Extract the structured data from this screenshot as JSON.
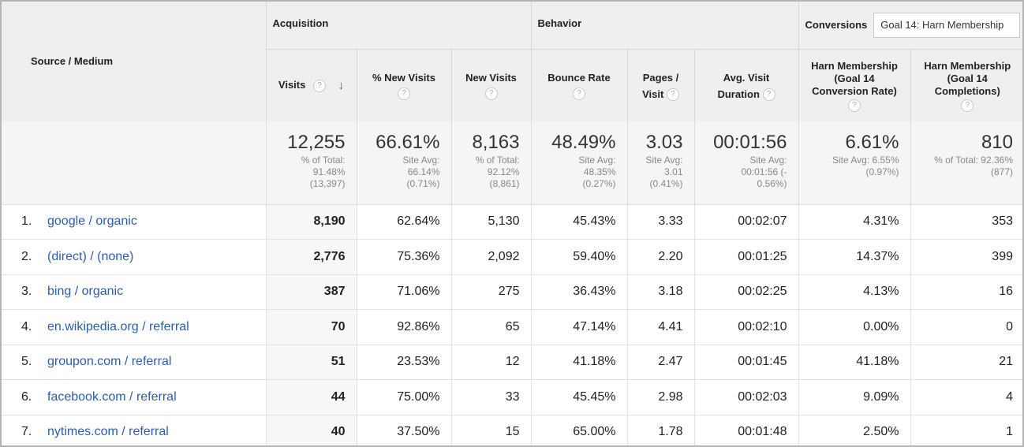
{
  "header": {
    "source_medium": "Source / Medium",
    "groups": {
      "acquisition": "Acquisition",
      "behavior": "Behavior",
      "conversions": "Conversions"
    },
    "goal_select": "Goal 14: Harn Membership",
    "columns": {
      "visits": "Visits",
      "pct_new_visits": "% New Visits",
      "new_visits": "New Visits",
      "bounce_rate": "Bounce Rate",
      "pages_visit_1": "Pages /",
      "pages_visit_2": "Visit",
      "avg_duration_1": "Avg. Visit",
      "avg_duration_2": "Duration",
      "conv_rate_1": "Harn Membership",
      "conv_rate_2": "(Goal 14",
      "conv_rate_3": "Conversion Rate)",
      "completions_1": "Harn Membership",
      "completions_2": "(Goal 14",
      "completions_3": "Completions)"
    },
    "help_glyph": "?",
    "sort_glyph": "↓"
  },
  "totals": {
    "visits": {
      "value": "12,255",
      "sub1": "% of Total:",
      "sub2": "91.48%",
      "sub3": "(13,397)"
    },
    "pct_new_visits": {
      "value": "66.61%",
      "sub1": "Site Avg:",
      "sub2": "66.14%",
      "sub3": "(0.71%)"
    },
    "new_visits": {
      "value": "8,163",
      "sub1": "% of Total:",
      "sub2": "92.12%",
      "sub3": "(8,861)"
    },
    "bounce_rate": {
      "value": "48.49%",
      "sub1": "Site Avg:",
      "sub2": "48.35%",
      "sub3": "(0.27%)"
    },
    "pages_visit": {
      "value": "3.03",
      "sub1": "Site Avg:",
      "sub2": "3.01",
      "sub3": "(0.41%)"
    },
    "avg_duration": {
      "value": "00:01:56",
      "sub1": "Site Avg:",
      "sub2": "00:01:56 (-",
      "sub3": "0.56%)"
    },
    "conv_rate": {
      "value": "6.61%",
      "sub1": "Site Avg: 6.55%",
      "sub2": "(0.97%)",
      "sub3": ""
    },
    "completions": {
      "value": "810",
      "sub1": "% of Total: 92.36%",
      "sub2": "(877)",
      "sub3": ""
    }
  },
  "rows": [
    {
      "rank": "1.",
      "source": "google / organic",
      "visits": "8,190",
      "pct_new": "62.64%",
      "new_visits": "5,130",
      "bounce": "45.43%",
      "pages": "3.33",
      "duration": "00:02:07",
      "conv_rate": "4.31%",
      "completions": "353"
    },
    {
      "rank": "2.",
      "source": "(direct) / (none)",
      "visits": "2,776",
      "pct_new": "75.36%",
      "new_visits": "2,092",
      "bounce": "59.40%",
      "pages": "2.20",
      "duration": "00:01:25",
      "conv_rate": "14.37%",
      "completions": "399"
    },
    {
      "rank": "3.",
      "source": "bing / organic",
      "visits": "387",
      "pct_new": "71.06%",
      "new_visits": "275",
      "bounce": "36.43%",
      "pages": "3.18",
      "duration": "00:02:25",
      "conv_rate": "4.13%",
      "completions": "16"
    },
    {
      "rank": "4.",
      "source": "en.wikipedia.org / referral",
      "visits": "70",
      "pct_new": "92.86%",
      "new_visits": "65",
      "bounce": "47.14%",
      "pages": "4.41",
      "duration": "00:02:10",
      "conv_rate": "0.00%",
      "completions": "0"
    },
    {
      "rank": "5.",
      "source": "groupon.com / referral",
      "visits": "51",
      "pct_new": "23.53%",
      "new_visits": "12",
      "bounce": "41.18%",
      "pages": "2.47",
      "duration": "00:01:45",
      "conv_rate": "41.18%",
      "completions": "21"
    },
    {
      "rank": "6.",
      "source": "facebook.com / referral",
      "visits": "44",
      "pct_new": "75.00%",
      "new_visits": "33",
      "bounce": "45.45%",
      "pages": "2.98",
      "duration": "00:02:03",
      "conv_rate": "9.09%",
      "completions": "4"
    },
    {
      "rank": "7.",
      "source": "nytimes.com / referral",
      "visits": "40",
      "pct_new": "37.50%",
      "new_visits": "15",
      "bounce": "65.00%",
      "pages": "1.78",
      "duration": "00:01:48",
      "conv_rate": "2.50%",
      "completions": "1"
    }
  ]
}
